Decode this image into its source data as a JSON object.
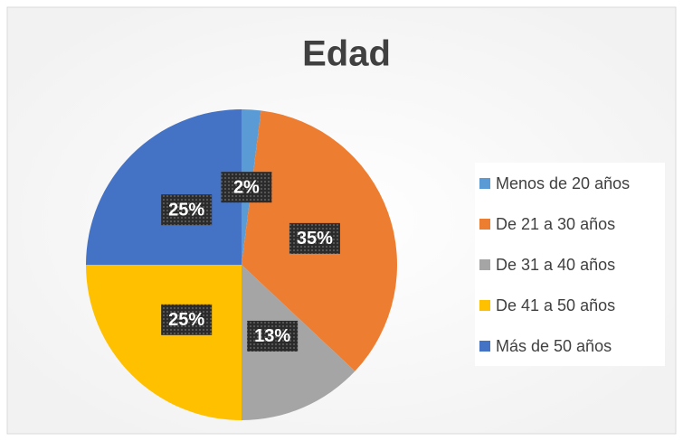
{
  "chart_data": {
    "type": "pie",
    "title": "Edad",
    "categories": [
      "Menos de 20 años",
      "De 21 a 30 años",
      "De 31 a 40 años",
      "De 41 a 50 años",
      "Más de 50 años"
    ],
    "values": [
      2,
      35,
      13,
      25,
      25
    ],
    "value_labels": [
      "2%",
      "35%",
      "13%",
      "25%",
      "25%"
    ],
    "colors": [
      "#5b9bd5",
      "#ed7d31",
      "#a5a5a5",
      "#ffc000",
      "#4472c4"
    ],
    "legend": "right"
  }
}
